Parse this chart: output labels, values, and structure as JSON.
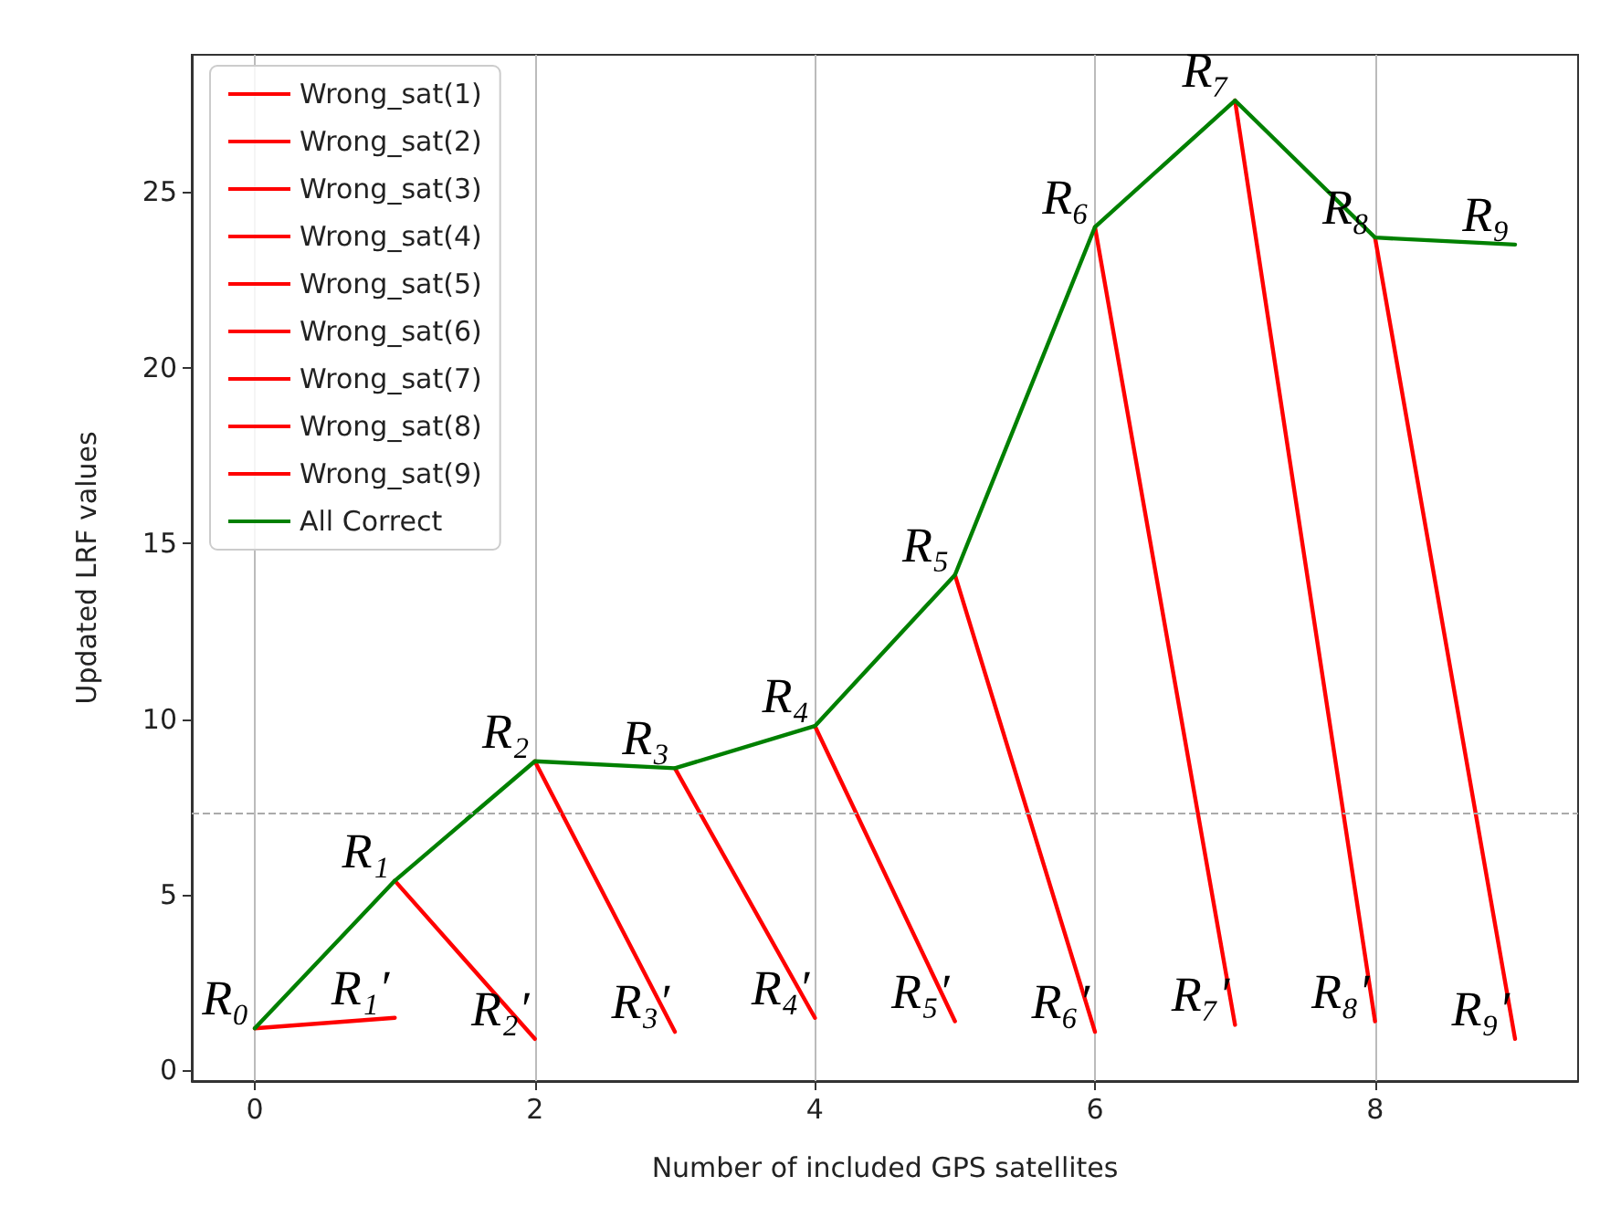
{
  "chart_data": {
    "type": "line",
    "xlabel": "Number of included GPS satellites",
    "ylabel": "Updated LRF values",
    "xlim": [
      -0.45,
      9.45
    ],
    "xticks": [
      0,
      2,
      4,
      6,
      8
    ],
    "ylim": [
      -0.3,
      28.9
    ],
    "yticks": [
      0,
      5,
      10,
      15,
      20,
      25
    ],
    "grid": "x",
    "legend": "top left",
    "line_style": "solid",
    "marker": "none",
    "series": [
      {
        "name": "Wrong_sat(1)",
        "color": "#ff0000",
        "x": [
          0,
          1
        ],
        "values": [
          1.2,
          1.5
        ]
      },
      {
        "name": "Wrong_sat(2)",
        "color": "#ff0000",
        "x": [
          1,
          2
        ],
        "values": [
          5.4,
          0.9
        ]
      },
      {
        "name": "Wrong_sat(3)",
        "color": "#ff0000",
        "x": [
          2,
          3
        ],
        "values": [
          8.8,
          1.1
        ]
      },
      {
        "name": "Wrong_sat(4)",
        "color": "#ff0000",
        "x": [
          3,
          4
        ],
        "values": [
          8.6,
          1.5
        ]
      },
      {
        "name": "Wrong_sat(5)",
        "color": "#ff0000",
        "x": [
          4,
          5
        ],
        "values": [
          9.8,
          1.4
        ]
      },
      {
        "name": "Wrong_sat(6)",
        "color": "#ff0000",
        "x": [
          5,
          6
        ],
        "values": [
          14.1,
          1.1
        ]
      },
      {
        "name": "Wrong_sat(7)",
        "color": "#ff0000",
        "x": [
          6,
          7
        ],
        "values": [
          24.0,
          1.3
        ]
      },
      {
        "name": "Wrong_sat(8)",
        "color": "#ff0000",
        "x": [
          7,
          8
        ],
        "values": [
          27.6,
          1.4
        ]
      },
      {
        "name": "Wrong_sat(9)",
        "color": "#ff0000",
        "x": [
          8,
          9
        ],
        "values": [
          23.7,
          0.9
        ]
      },
      {
        "name": "All Correct",
        "color": "#008000",
        "x": [
          0,
          1,
          2,
          3,
          4,
          5,
          6,
          7,
          8,
          9
        ],
        "values": [
          1.2,
          5.4,
          8.8,
          8.6,
          9.8,
          14.1,
          24.0,
          27.6,
          23.7,
          23.5
        ]
      }
    ],
    "ref_lines": [
      {
        "axis": "y",
        "value": 7.3,
        "label": null,
        "color": "#aaaaaa",
        "line_style": "dashed"
      }
    ],
    "annotations": [
      {
        "text": "R₀",
        "x": 0,
        "y": 1.2
      },
      {
        "text": "R₁",
        "x": 1,
        "y": 5.4
      },
      {
        "text": "R₂",
        "x": 2,
        "y": 8.8
      },
      {
        "text": "R₃",
        "x": 3,
        "y": 8.6
      },
      {
        "text": "R₄",
        "x": 4,
        "y": 9.8
      },
      {
        "text": "R₅",
        "x": 5,
        "y": 14.1
      },
      {
        "text": "R₆",
        "x": 6,
        "y": 24.0
      },
      {
        "text": "R₇",
        "x": 7,
        "y": 27.6
      },
      {
        "text": "R₈",
        "x": 8,
        "y": 23.7
      },
      {
        "text": "R₉",
        "x": 9,
        "y": 23.5
      },
      {
        "text": "R₁′",
        "x": 1,
        "y": 1.5
      },
      {
        "text": "R₂′",
        "x": 2,
        "y": 0.9
      },
      {
        "text": "R₃′",
        "x": 3,
        "y": 1.1
      },
      {
        "text": "R₄′",
        "x": 4,
        "y": 1.5
      },
      {
        "text": "R₅′",
        "x": 5,
        "y": 1.4
      },
      {
        "text": "R₆′",
        "x": 6,
        "y": 1.1
      },
      {
        "text": "R₇′",
        "x": 7,
        "y": 1.3
      },
      {
        "text": "R₈′",
        "x": 8,
        "y": 1.4
      },
      {
        "text": "R₉′",
        "x": 9,
        "y": 0.9
      }
    ]
  }
}
